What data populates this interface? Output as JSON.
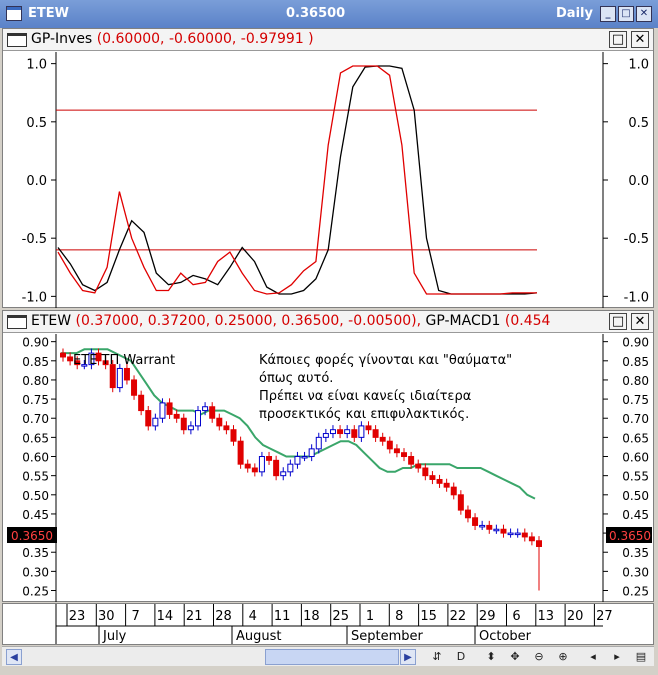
{
  "window": {
    "symbol": "ETEW",
    "price": "0.36500",
    "period": "Daily"
  },
  "upper_pane": {
    "indicator": "GP-Inves",
    "values": "(0.60000, -0.60000, -0.97991 )"
  },
  "lower_pane": {
    "symbol": "ETEW",
    "values": "(0.37000, 0.37200, 0.25000, 0.36500, -0.00500),",
    "indicator": "GP-MACD1",
    "indicator_value": "(0.454"
  },
  "chart_label": "ETE ΤΠ Warrant",
  "annotation": [
    "Κάποιες φορές γίνονται και \"θαύματα\"",
    "όπως αυτό.",
    "Πρέπει να είναι κανείς ιδιαίτερα",
    "προσεκτικός και επιφυλακτικός."
  ],
  "price_tag": "0.3650",
  "date_ticks": [
    "23",
    "30",
    "7",
    "14",
    "21",
    "28",
    "4",
    "11",
    "18",
    "25",
    "1",
    "8",
    "15",
    "22",
    "29",
    "6",
    "13",
    "20",
    "27"
  ],
  "month_labels": [
    "July",
    "August",
    "September",
    "October"
  ],
  "toolbar_icons": [
    "cycle-icon",
    "d-icon",
    "vertical-arrows-icon",
    "move-icon",
    "zoom-out-icon",
    "zoom-in-icon",
    "left-arrow-icon",
    "right-arrow-icon",
    "grid-icon"
  ],
  "toolbar_glyphs": [
    "⇵",
    "D",
    "⬍",
    "✥",
    "⊖",
    "⊕",
    "◂",
    "▸",
    "▤"
  ],
  "colors": {
    "up_candle": "#0000cc",
    "down_candle": "#e00000",
    "ma_line": "#3aa66a",
    "level_line": "#cc0000",
    "black_line": "#000000",
    "red_line": "#e00000"
  },
  "chart_data": [
    {
      "type": "line",
      "title": "GP-Inves",
      "ylim": [
        -1.1,
        1.1
      ],
      "yticks": [
        "1.0",
        "0.5",
        "0.0",
        "-0.5",
        "-1.0"
      ],
      "hlines": [
        0.6,
        -0.6
      ],
      "series": [
        {
          "values": [
            -0.58,
            -0.72,
            -0.9,
            -0.95,
            -0.88,
            -0.6,
            -0.35,
            -0.45,
            -0.8,
            -0.9,
            -0.88,
            -0.82,
            -0.85,
            -0.9,
            -0.75,
            -0.58,
            -0.7,
            -0.92,
            -0.98,
            -0.98,
            -0.95,
            -0.85,
            -0.6,
            0.2,
            0.8,
            0.97,
            0.98,
            0.98,
            0.96,
            0.6,
            -0.5,
            -0.95,
            -0.98,
            -0.98,
            -0.98,
            -0.98,
            -0.98,
            -0.98,
            -0.98,
            -0.97
          ]
        },
        {
          "values": [
            -0.62,
            -0.8,
            -0.95,
            -0.97,
            -0.75,
            -0.1,
            -0.5,
            -0.75,
            -0.95,
            -0.95,
            -0.8,
            -0.9,
            -0.88,
            -0.7,
            -0.62,
            -0.8,
            -0.95,
            -0.98,
            -0.97,
            -0.9,
            -0.78,
            -0.7,
            0.3,
            0.92,
            0.98,
            0.98,
            0.98,
            0.9,
            0.3,
            -0.8,
            -0.98,
            -0.98,
            -0.98,
            -0.98,
            -0.98,
            -0.98,
            -0.98,
            -0.97,
            -0.97,
            -0.97
          ]
        }
      ]
    },
    {
      "type": "candlestick",
      "title": "ETEW",
      "ylim": [
        0.22,
        0.92
      ],
      "yticks": [
        "0.90",
        "0.85",
        "0.80",
        "0.75",
        "0.70",
        "0.65",
        "0.60",
        "0.55",
        "0.50",
        "0.45",
        "0.40",
        "0.35",
        "0.30",
        "0.25"
      ],
      "close": [
        0.86,
        0.85,
        0.84,
        0.84,
        0.87,
        0.85,
        0.84,
        0.78,
        0.83,
        0.8,
        0.76,
        0.72,
        0.68,
        0.7,
        0.74,
        0.71,
        0.7,
        0.67,
        0.68,
        0.72,
        0.73,
        0.7,
        0.68,
        0.67,
        0.64,
        0.58,
        0.57,
        0.56,
        0.6,
        0.59,
        0.55,
        0.56,
        0.58,
        0.6,
        0.6,
        0.62,
        0.65,
        0.66,
        0.67,
        0.66,
        0.67,
        0.65,
        0.68,
        0.67,
        0.65,
        0.64,
        0.62,
        0.61,
        0.6,
        0.58,
        0.57,
        0.55,
        0.54,
        0.53,
        0.52,
        0.5,
        0.46,
        0.44,
        0.42,
        0.42,
        0.41,
        0.41,
        0.4,
        0.4,
        0.4,
        0.39,
        0.38,
        0.365
      ],
      "ma": [
        0.87,
        0.87,
        0.87,
        0.88,
        0.88,
        0.88,
        0.88,
        0.87,
        0.86,
        0.85,
        0.82,
        0.79,
        0.76,
        0.74,
        0.73,
        0.72,
        0.72,
        0.72,
        0.71,
        0.72,
        0.72,
        0.72,
        0.71,
        0.7,
        0.68,
        0.65,
        0.63,
        0.62,
        0.61,
        0.6,
        0.6,
        0.6,
        0.6,
        0.61,
        0.62,
        0.63,
        0.64,
        0.64,
        0.63,
        0.61,
        0.59,
        0.57,
        0.56,
        0.56,
        0.57,
        0.57,
        0.58,
        0.58,
        0.58,
        0.58,
        0.58,
        0.57,
        0.57,
        0.57,
        0.57,
        0.56,
        0.55,
        0.54,
        0.53,
        0.52,
        0.5,
        0.49
      ]
    }
  ]
}
